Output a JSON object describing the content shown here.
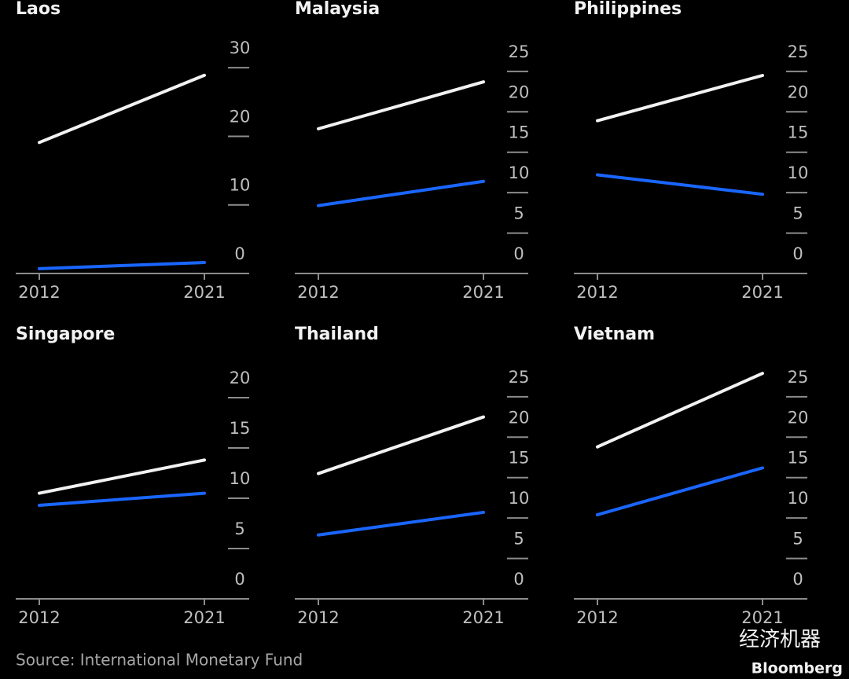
{
  "chart_data": [
    {
      "type": "line",
      "title": "Laos",
      "x": [
        "2012",
        "2021"
      ],
      "ylim": [
        0,
        33
      ],
      "yticks": [
        0,
        10,
        20,
        30
      ],
      "series": [
        {
          "color": "#f2f2f2",
          "values": [
            19.1,
            28.9
          ]
        },
        {
          "color": "#1a66ff",
          "values": [
            0.7,
            1.6
          ]
        }
      ]
    },
    {
      "type": "line",
      "title": "Malaysia",
      "x": [
        "2012",
        "2021"
      ],
      "ylim": [
        0,
        28
      ],
      "yticks": [
        0,
        5,
        10,
        15,
        20,
        25
      ],
      "series": [
        {
          "color": "#f2f2f2",
          "values": [
            17.9,
            23.7
          ]
        },
        {
          "color": "#1a66ff",
          "values": [
            8.4,
            11.4
          ]
        }
      ]
    },
    {
      "type": "line",
      "title": "Philippines",
      "x": [
        "2012",
        "2021"
      ],
      "ylim": [
        0,
        28
      ],
      "yticks": [
        0,
        5,
        10,
        15,
        20,
        25
      ],
      "series": [
        {
          "color": "#f2f2f2",
          "values": [
            18.9,
            24.5
          ]
        },
        {
          "color": "#1a66ff",
          "values": [
            12.2,
            9.8
          ]
        }
      ]
    },
    {
      "type": "line",
      "title": "Singapore",
      "x": [
        "2012",
        "2021"
      ],
      "ylim": [
        0,
        22.5
      ],
      "yticks": [
        0,
        5,
        10,
        15,
        20
      ],
      "series": [
        {
          "color": "#f2f2f2",
          "values": [
            10.5,
            13.8
          ]
        },
        {
          "color": "#1a66ff",
          "values": [
            9.3,
            10.5
          ]
        }
      ]
    },
    {
      "type": "line",
      "title": "Thailand",
      "x": [
        "2012",
        "2021"
      ],
      "ylim": [
        0,
        28
      ],
      "yticks": [
        0,
        5,
        10,
        15,
        20,
        25
      ],
      "series": [
        {
          "color": "#f2f2f2",
          "values": [
            15.5,
            22.5
          ]
        },
        {
          "color": "#1a66ff",
          "values": [
            7.9,
            10.7
          ]
        }
      ]
    },
    {
      "type": "line",
      "title": "Vietnam",
      "x": [
        "2012",
        "2021"
      ],
      "ylim": [
        0,
        28
      ],
      "yticks": [
        0,
        5,
        10,
        15,
        20,
        25
      ],
      "series": [
        {
          "color": "#f2f2f2",
          "values": [
            18.8,
            27.9
          ]
        },
        {
          "color": "#1a66ff",
          "values": [
            10.4,
            16.2
          ]
        }
      ]
    }
  ],
  "source": "Source: International Monetary Fund",
  "brand": "Bloomberg",
  "watermark": "经济机器"
}
